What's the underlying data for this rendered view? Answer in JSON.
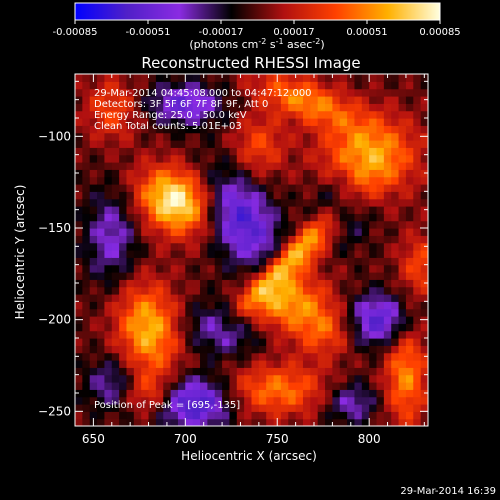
{
  "chart_data": {
    "type": "heatmap",
    "title": "Reconstructed RHESSI Image",
    "xlabel": "Heliocentric X (arcsec)",
    "ylabel": "Heliocentric Y (arcsec)",
    "xlim": [
      640,
      832
    ],
    "ylim": [
      -258,
      -66
    ],
    "xticks": [
      650,
      700,
      750,
      800
    ],
    "yticks": [
      -100,
      -150,
      -200,
      -250
    ],
    "colorbar": {
      "min": -0.00085,
      "max": 0.00085,
      "ticks": [
        "-0.00085",
        "-0.00051",
        "-0.00017",
        "0.00017",
        "0.00051",
        "0.00085"
      ],
      "label_parts": [
        "(photons cm",
        "-2",
        " s",
        "-1",
        " asec",
        "-2",
        ")"
      ],
      "colors": [
        "#0000ff",
        "#5020c8",
        "#8a2be2",
        "#000000",
        "#b01010",
        "#ff4000",
        "#ffb000",
        "#ffffe0"
      ]
    },
    "info_lines": [
      "29-Mar-2014 04:45:08.000 to 04:47:12.000",
      "Detectors: 3F 5F 6F 7F 8F 9F, Att 0",
      "Energy Range: 25.0 - 50.0 keV",
      "Clean     Total counts: 5.01E+03"
    ],
    "peak_text": "Position of Peak = [695,-135]",
    "peak": [
      695,
      -135
    ],
    "sources": [
      {
        "x": 695,
        "y": -135,
        "amp": 1.0,
        "sx": 15,
        "sy": 12,
        "rot": -25
      },
      {
        "x": 760,
        "y": -165,
        "amp": 0.8,
        "sx": 30,
        "sy": 6,
        "rot": 45
      },
      {
        "x": 755,
        "y": -190,
        "amp": 0.65,
        "sx": 15,
        "sy": 10,
        "rot": 15
      },
      {
        "x": 800,
        "y": -110,
        "amp": 0.7,
        "sx": 18,
        "sy": 15,
        "rot": 0
      },
      {
        "x": 775,
        "y": -205,
        "amp": 0.5,
        "sx": 12,
        "sy": 10,
        "rot": 0
      },
      {
        "x": 680,
        "y": -205,
        "amp": 0.75,
        "sx": 12,
        "sy": 18,
        "rot": 10
      },
      {
        "x": 750,
        "y": -238,
        "amp": 0.55,
        "sx": 20,
        "sy": 10,
        "rot": 0
      },
      {
        "x": 820,
        "y": -230,
        "amp": 0.6,
        "sx": 8,
        "sy": 20,
        "rot": 0
      },
      {
        "x": 765,
        "y": -80,
        "amp": 0.6,
        "sx": 20,
        "sy": 8,
        "rot": -20
      },
      {
        "x": 660,
        "y": -85,
        "amp": 0.4,
        "sx": 10,
        "sy": 12,
        "rot": 0
      },
      {
        "x": 740,
        "y": -105,
        "amp": 0.4,
        "sx": 10,
        "sy": 12,
        "rot": 0
      },
      {
        "x": 680,
        "y": -240,
        "amp": 0.4,
        "sx": 10,
        "sy": 8,
        "rot": 0
      },
      {
        "x": 828,
        "y": -170,
        "amp": 0.4,
        "sx": 8,
        "sy": 12,
        "rot": 0
      },
      {
        "x": 660,
        "y": -155,
        "amp": -0.45,
        "sx": 10,
        "sy": 18,
        "rot": 0
      },
      {
        "x": 730,
        "y": -145,
        "amp": -0.75,
        "sx": 12,
        "sy": 20,
        "rot": 30
      },
      {
        "x": 785,
        "y": -140,
        "amp": -0.45,
        "sx": 10,
        "sy": 12,
        "rot": 0
      },
      {
        "x": 705,
        "y": -245,
        "amp": -0.8,
        "sx": 14,
        "sy": 10,
        "rot": 0
      },
      {
        "x": 720,
        "y": -205,
        "amp": -0.5,
        "sx": 14,
        "sy": 10,
        "rot": 0
      },
      {
        "x": 805,
        "y": -200,
        "amp": -0.7,
        "sx": 12,
        "sy": 10,
        "rot": 0
      },
      {
        "x": 790,
        "y": -245,
        "amp": -0.45,
        "sx": 10,
        "sy": 8,
        "rot": 0
      },
      {
        "x": 700,
        "y": -82,
        "amp": -0.6,
        "sx": 14,
        "sy": 8,
        "rot": 0
      },
      {
        "x": 660,
        "y": -235,
        "amp": -0.4,
        "sx": 10,
        "sy": 10,
        "rot": 0
      }
    ]
  },
  "footer": {
    "timestamp": "29-Mar-2014 16:39"
  }
}
